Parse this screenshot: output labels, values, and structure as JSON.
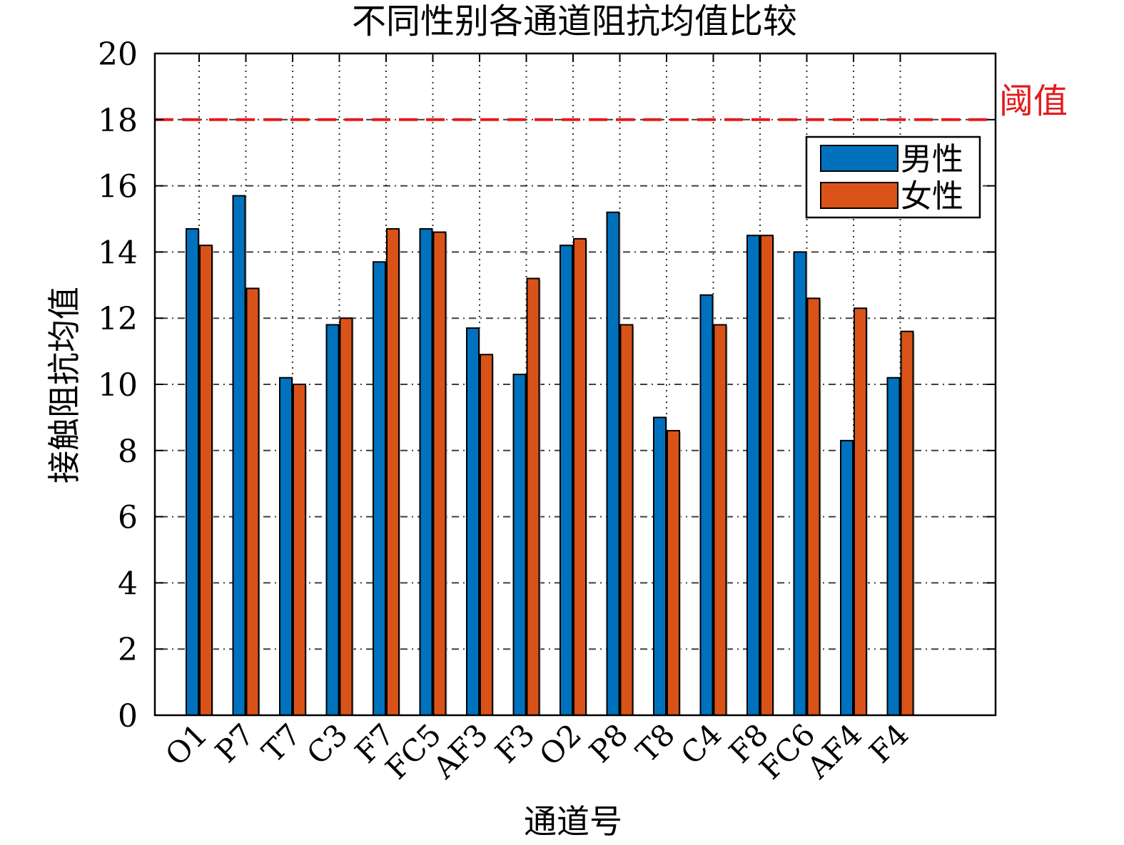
{
  "chart_data": {
    "type": "bar",
    "title": "不同性别各通道阻抗均值比较",
    "xlabel": "通道号",
    "ylabel": "接触阻抗均值",
    "ylim": [
      0,
      20
    ],
    "yticks": [
      "0",
      "2",
      "4",
      "6",
      "8",
      "10",
      "12",
      "14",
      "16",
      "18",
      "20"
    ],
    "categories": [
      "O1",
      "P7",
      "T7",
      "C3",
      "F7",
      "FC5",
      "AF3",
      "F3",
      "O2",
      "P8",
      "T8",
      "C4",
      "F8",
      "FC6",
      "AF4",
      "F4"
    ],
    "series": [
      {
        "name": "男性",
        "color": "#0072BD",
        "values": [
          14.7,
          15.7,
          10.2,
          11.8,
          13.7,
          14.7,
          11.7,
          10.3,
          14.2,
          15.2,
          9.0,
          12.7,
          14.5,
          14.0,
          8.3,
          10.2
        ]
      },
      {
        "name": "女性",
        "color": "#D95319",
        "values": [
          14.2,
          12.9,
          10.0,
          12.0,
          14.7,
          14.6,
          10.9,
          13.2,
          14.4,
          11.8,
          8.6,
          11.8,
          14.5,
          12.6,
          12.3,
          11.6
        ]
      }
    ],
    "threshold": {
      "value": 18,
      "label": "阈值",
      "color": "#E41A1C",
      "style": "dashed"
    },
    "grid": true,
    "legend": "top-right"
  }
}
